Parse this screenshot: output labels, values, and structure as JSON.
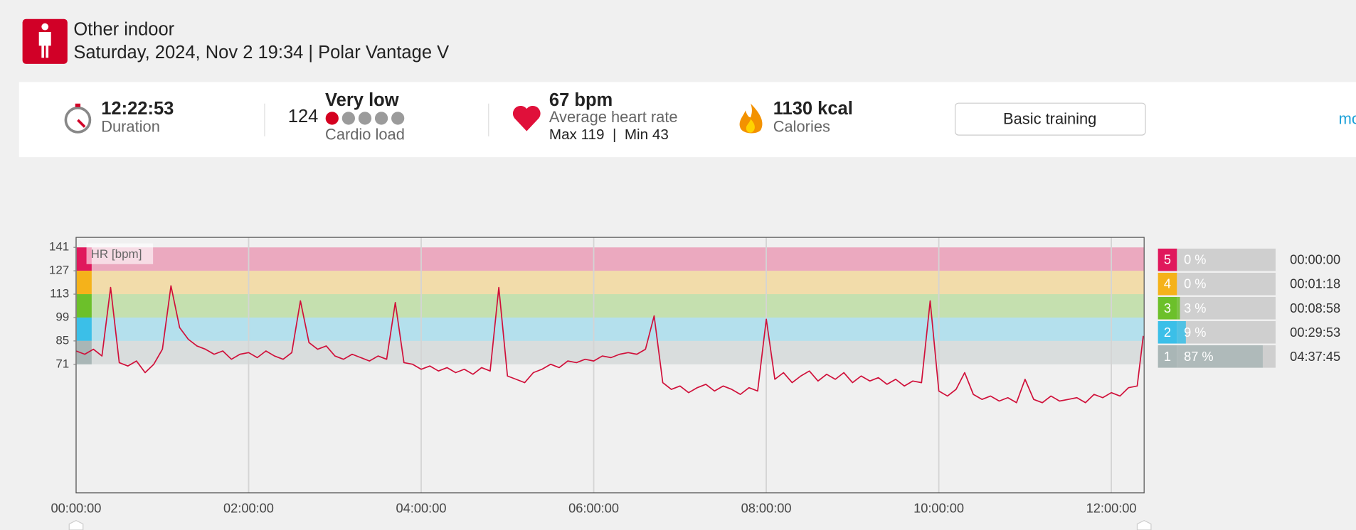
{
  "header": {
    "sport": "Other indoor",
    "subtitle": "Saturday, 2024, Nov 2 19:34 | Polar Vantage V"
  },
  "summary": {
    "duration": "12:22:53",
    "duration_label": "Duration",
    "cardio_value": "124",
    "cardio_level": "Very low",
    "cardio_label": "Cardio load",
    "hr_avg": "67 bpm",
    "hr_label": "Average heart rate",
    "hr_range": "Max 119  |  Min 43",
    "calories": "1130 kcal",
    "calories_label": "Calories",
    "button": "Basic training",
    "more": "mo"
  },
  "chart_data": {
    "type": "line",
    "y_label": "HR [bpm]",
    "color": "#d0103a",
    "xlim": [
      0,
      12.38
    ],
    "ylim": [
      -6,
      147
    ],
    "xticks": [
      {
        "value": 0,
        "label": "00:00:00"
      },
      {
        "value": 2,
        "label": "02:00:00"
      },
      {
        "value": 4,
        "label": "04:00:00"
      },
      {
        "value": 6,
        "label": "06:00:00"
      },
      {
        "value": 8,
        "label": "08:00:00"
      },
      {
        "value": 10,
        "label": "10:00:00"
      },
      {
        "value": 12,
        "label": "12:00:00"
      }
    ],
    "yticks": [
      141,
      127,
      113,
      99,
      85,
      71
    ],
    "grid": true,
    "x": [
      0,
      0.1,
      0.2,
      0.3,
      0.4,
      0.5,
      0.6,
      0.7,
      0.8,
      0.9,
      1,
      1.1,
      1.2,
      1.3,
      1.4,
      1.5,
      1.6,
      1.7,
      1.8,
      1.9,
      2,
      2.1,
      2.2,
      2.3,
      2.4,
      2.5,
      2.6,
      2.7,
      2.8,
      2.9,
      3,
      3.1,
      3.2,
      3.3,
      3.4,
      3.5,
      3.6,
      3.7,
      3.8,
      3.9,
      4,
      4.1,
      4.2,
      4.3,
      4.4,
      4.5,
      4.6,
      4.7,
      4.8,
      4.9,
      5,
      5.1,
      5.2,
      5.3,
      5.4,
      5.5,
      5.6,
      5.7,
      5.8,
      5.9,
      6,
      6.1,
      6.2,
      6.3,
      6.4,
      6.5,
      6.6,
      6.7,
      6.8,
      6.9,
      7,
      7.1,
      7.2,
      7.3,
      7.4,
      7.5,
      7.6,
      7.7,
      7.8,
      7.9,
      8,
      8.1,
      8.2,
      8.3,
      8.4,
      8.5,
      8.6,
      8.7,
      8.8,
      8.9,
      9,
      9.1,
      9.2,
      9.3,
      9.4,
      9.5,
      9.6,
      9.7,
      9.8,
      9.9,
      10,
      10.1,
      10.2,
      10.3,
      10.4,
      10.5,
      10.6,
      10.7,
      10.8,
      10.9,
      11,
      11.1,
      11.2,
      11.3,
      11.4,
      11.5,
      11.6,
      11.7,
      11.8,
      11.9,
      12,
      12.1,
      12.2,
      12.3,
      12.37
    ],
    "values": [
      79,
      77,
      80,
      76,
      117,
      72,
      70,
      73,
      66,
      71,
      80,
      118,
      93,
      86,
      82,
      80,
      77,
      79,
      74,
      77,
      78,
      75,
      79,
      76,
      74,
      78,
      109,
      84,
      80,
      82,
      76,
      74,
      77,
      75,
      73,
      76,
      74,
      108,
      72,
      71,
      68,
      70,
      67,
      69,
      66,
      68,
      65,
      69,
      67,
      117,
      64,
      62,
      60,
      66,
      68,
      71,
      69,
      73,
      72,
      74,
      73,
      76,
      75,
      77,
      78,
      77,
      80,
      100,
      60,
      56,
      58,
      54,
      57,
      59,
      55,
      58,
      56,
      53,
      57,
      55,
      98,
      62,
      66,
      60,
      64,
      67,
      61,
      65,
      62,
      66,
      60,
      64,
      61,
      63,
      59,
      62,
      58,
      61,
      60,
      109,
      55,
      52,
      56,
      66,
      53,
      50,
      52,
      49,
      51,
      48,
      62,
      50,
      48,
      52,
      49,
      50,
      51,
      48,
      53,
      51,
      54,
      52,
      57,
      58,
      88
    ],
    "zones": {
      "names": [
        "5",
        "4",
        "3",
        "2",
        "1"
      ],
      "colors": [
        "#e0185c",
        "#f5b21a",
        "#6cc02a",
        "#3bbfe8",
        "#a9b6b6"
      ],
      "values": [
        0,
        0,
        3,
        9,
        87
      ],
      "value_labels": [
        "0 %",
        "0 %",
        "3 %",
        "9 %",
        "87 %"
      ],
      "times": [
        "00:00:00",
        "00:01:18",
        "00:08:58",
        "00:29:53",
        "04:37:45"
      ]
    }
  }
}
